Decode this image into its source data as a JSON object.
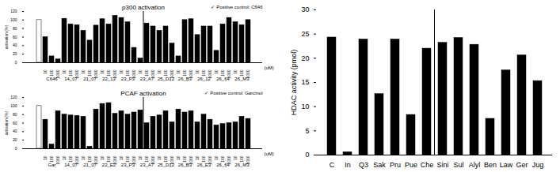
{
  "chart_data": [
    {
      "type": "bar",
      "title": "p300 activation",
      "annotation": "✓ Positive control: C646",
      "x_label": "(uM)",
      "y_label": "activation (%)",
      "categories": [
        null,
        "10",
        "100",
        "1000",
        "10",
        "100",
        "1000",
        "10",
        "100",
        "1000",
        "10",
        "100",
        "1000",
        "10",
        "100",
        "1000",
        "10",
        "100",
        "1000",
        "10",
        "100",
        "1000",
        "10",
        "100",
        "1000",
        "10",
        "100",
        "1000",
        "10",
        "100",
        "1000",
        "10",
        "100",
        "1000"
      ],
      "bar_groups": [
        null,
        "C646",
        "C646",
        "C646",
        "14_07",
        "14_07",
        "14_07",
        "21_07",
        "21_07",
        "21_07",
        "22_13",
        "22_13",
        "22_13",
        "23_P3",
        "23_P3",
        "23_P3",
        "23_A7",
        "23_A7",
        "23_A7",
        "25_D12",
        "25_D12",
        "25_D12",
        "26_B3",
        "26_B3",
        "26_B3",
        "26_12",
        "26_12",
        "26_12",
        "26_64",
        "26_64",
        "26_64",
        "26_M3",
        "26_M3",
        "26_M3"
      ],
      "values": [
        100,
        60,
        15,
        8,
        103,
        90,
        88,
        75,
        52,
        87,
        102,
        90,
        110,
        105,
        95,
        35,
        10,
        92,
        85,
        75,
        85,
        45,
        15,
        100,
        102,
        65,
        85,
        85,
        28,
        90,
        105,
        95,
        88,
        100
      ],
      "colors": [
        "#ffffff",
        "#000000",
        "#000000",
        "#000000",
        "#000000",
        "#000000",
        "#000000",
        "#000000",
        "#000000",
        "#000000",
        "#000000",
        "#000000",
        "#000000",
        "#000000",
        "#000000",
        "#000000",
        "#000000",
        "#000000",
        "#000000",
        "#000000",
        "#000000",
        "#000000",
        "#000000",
        "#000000",
        "#000000",
        "#000000",
        "#000000",
        "#000000",
        "#000000",
        "#000000",
        "#000000",
        "#000000",
        "#000000",
        "#000000"
      ],
      "ylim": [
        0,
        120
      ],
      "yticks": [
        0,
        20,
        40,
        60,
        80,
        100,
        120
      ],
      "grid": false
    },
    {
      "type": "bar",
      "title": "PCAF activation",
      "annotation": "✓ Positive control: Garcinol",
      "x_label": "(uM)",
      "y_label": "activation (%)",
      "categories": [
        null,
        "10",
        "100",
        "1000",
        "10",
        "100",
        "1000",
        "10",
        "100",
        "1000",
        "10",
        "100",
        "1000",
        "10",
        "100",
        "1000",
        "10",
        "100",
        "1000",
        "10",
        "100",
        "1000",
        "10",
        "100",
        "1000",
        "10",
        "100",
        "1000",
        "10",
        "100",
        "1000",
        "10",
        "100",
        "1000"
      ],
      "bar_groups": [
        null,
        "Gar",
        "Gar",
        "Gar",
        "14_07",
        "14_07",
        "14_07",
        "21_07",
        "21_07",
        "21_07",
        "22_E2",
        "22_E2",
        "22_E2",
        "23_P3",
        "23_P3",
        "23_P3",
        "23_A7",
        "23_A7",
        "23_A7",
        "25_D12",
        "25_D12",
        "25_D12",
        "26_B3",
        "26_B3",
        "26_B3",
        "26_E3",
        "26_E3",
        "26_E3",
        "26_64",
        "26_64",
        "26_64",
        "26_M3",
        "26_M3",
        "26_M3"
      ],
      "values": [
        100,
        68,
        10,
        88,
        80,
        78,
        77,
        75,
        5,
        92,
        105,
        107,
        82,
        88,
        80,
        85,
        90,
        60,
        75,
        78,
        88,
        62,
        92,
        85,
        88,
        62,
        80,
        68,
        55,
        58,
        60,
        62,
        75,
        70
      ],
      "colors": [
        "#ffffff",
        "#000000",
        "#000000",
        "#000000",
        "#000000",
        "#000000",
        "#000000",
        "#000000",
        "#000000",
        "#000000",
        "#000000",
        "#000000",
        "#000000",
        "#000000",
        "#000000",
        "#000000",
        "#000000",
        "#000000",
        "#000000",
        "#000000",
        "#000000",
        "#000000",
        "#000000",
        "#000000",
        "#000000",
        "#000000",
        "#000000",
        "#000000",
        "#000000",
        "#000000",
        "#000000",
        "#000000",
        "#000000",
        "#000000"
      ],
      "ylim": [
        0,
        120
      ],
      "yticks": [
        0,
        20,
        40,
        60,
        80,
        100,
        120
      ],
      "grid": false
    },
    {
      "type": "bar",
      "y_label": "HDAC activity (pmol)",
      "categories": [
        "C",
        "In",
        "Q3",
        "Sak",
        "Pru",
        "Pue",
        "Che",
        "Sini",
        "Sul",
        "Alyl",
        "Ben",
        "Law",
        "Ger",
        "Jug"
      ],
      "values": [
        24.3,
        0.6,
        23.9,
        12.6,
        23.9,
        8.3,
        22.0,
        23.2,
        24.2,
        22.8,
        7.5,
        17.5,
        20.6,
        15.3
      ],
      "color": "#000000",
      "ylim": [
        0,
        30
      ],
      "yticks": [
        0,
        5,
        10,
        15,
        20,
        25,
        30
      ],
      "grid": false
    }
  ]
}
